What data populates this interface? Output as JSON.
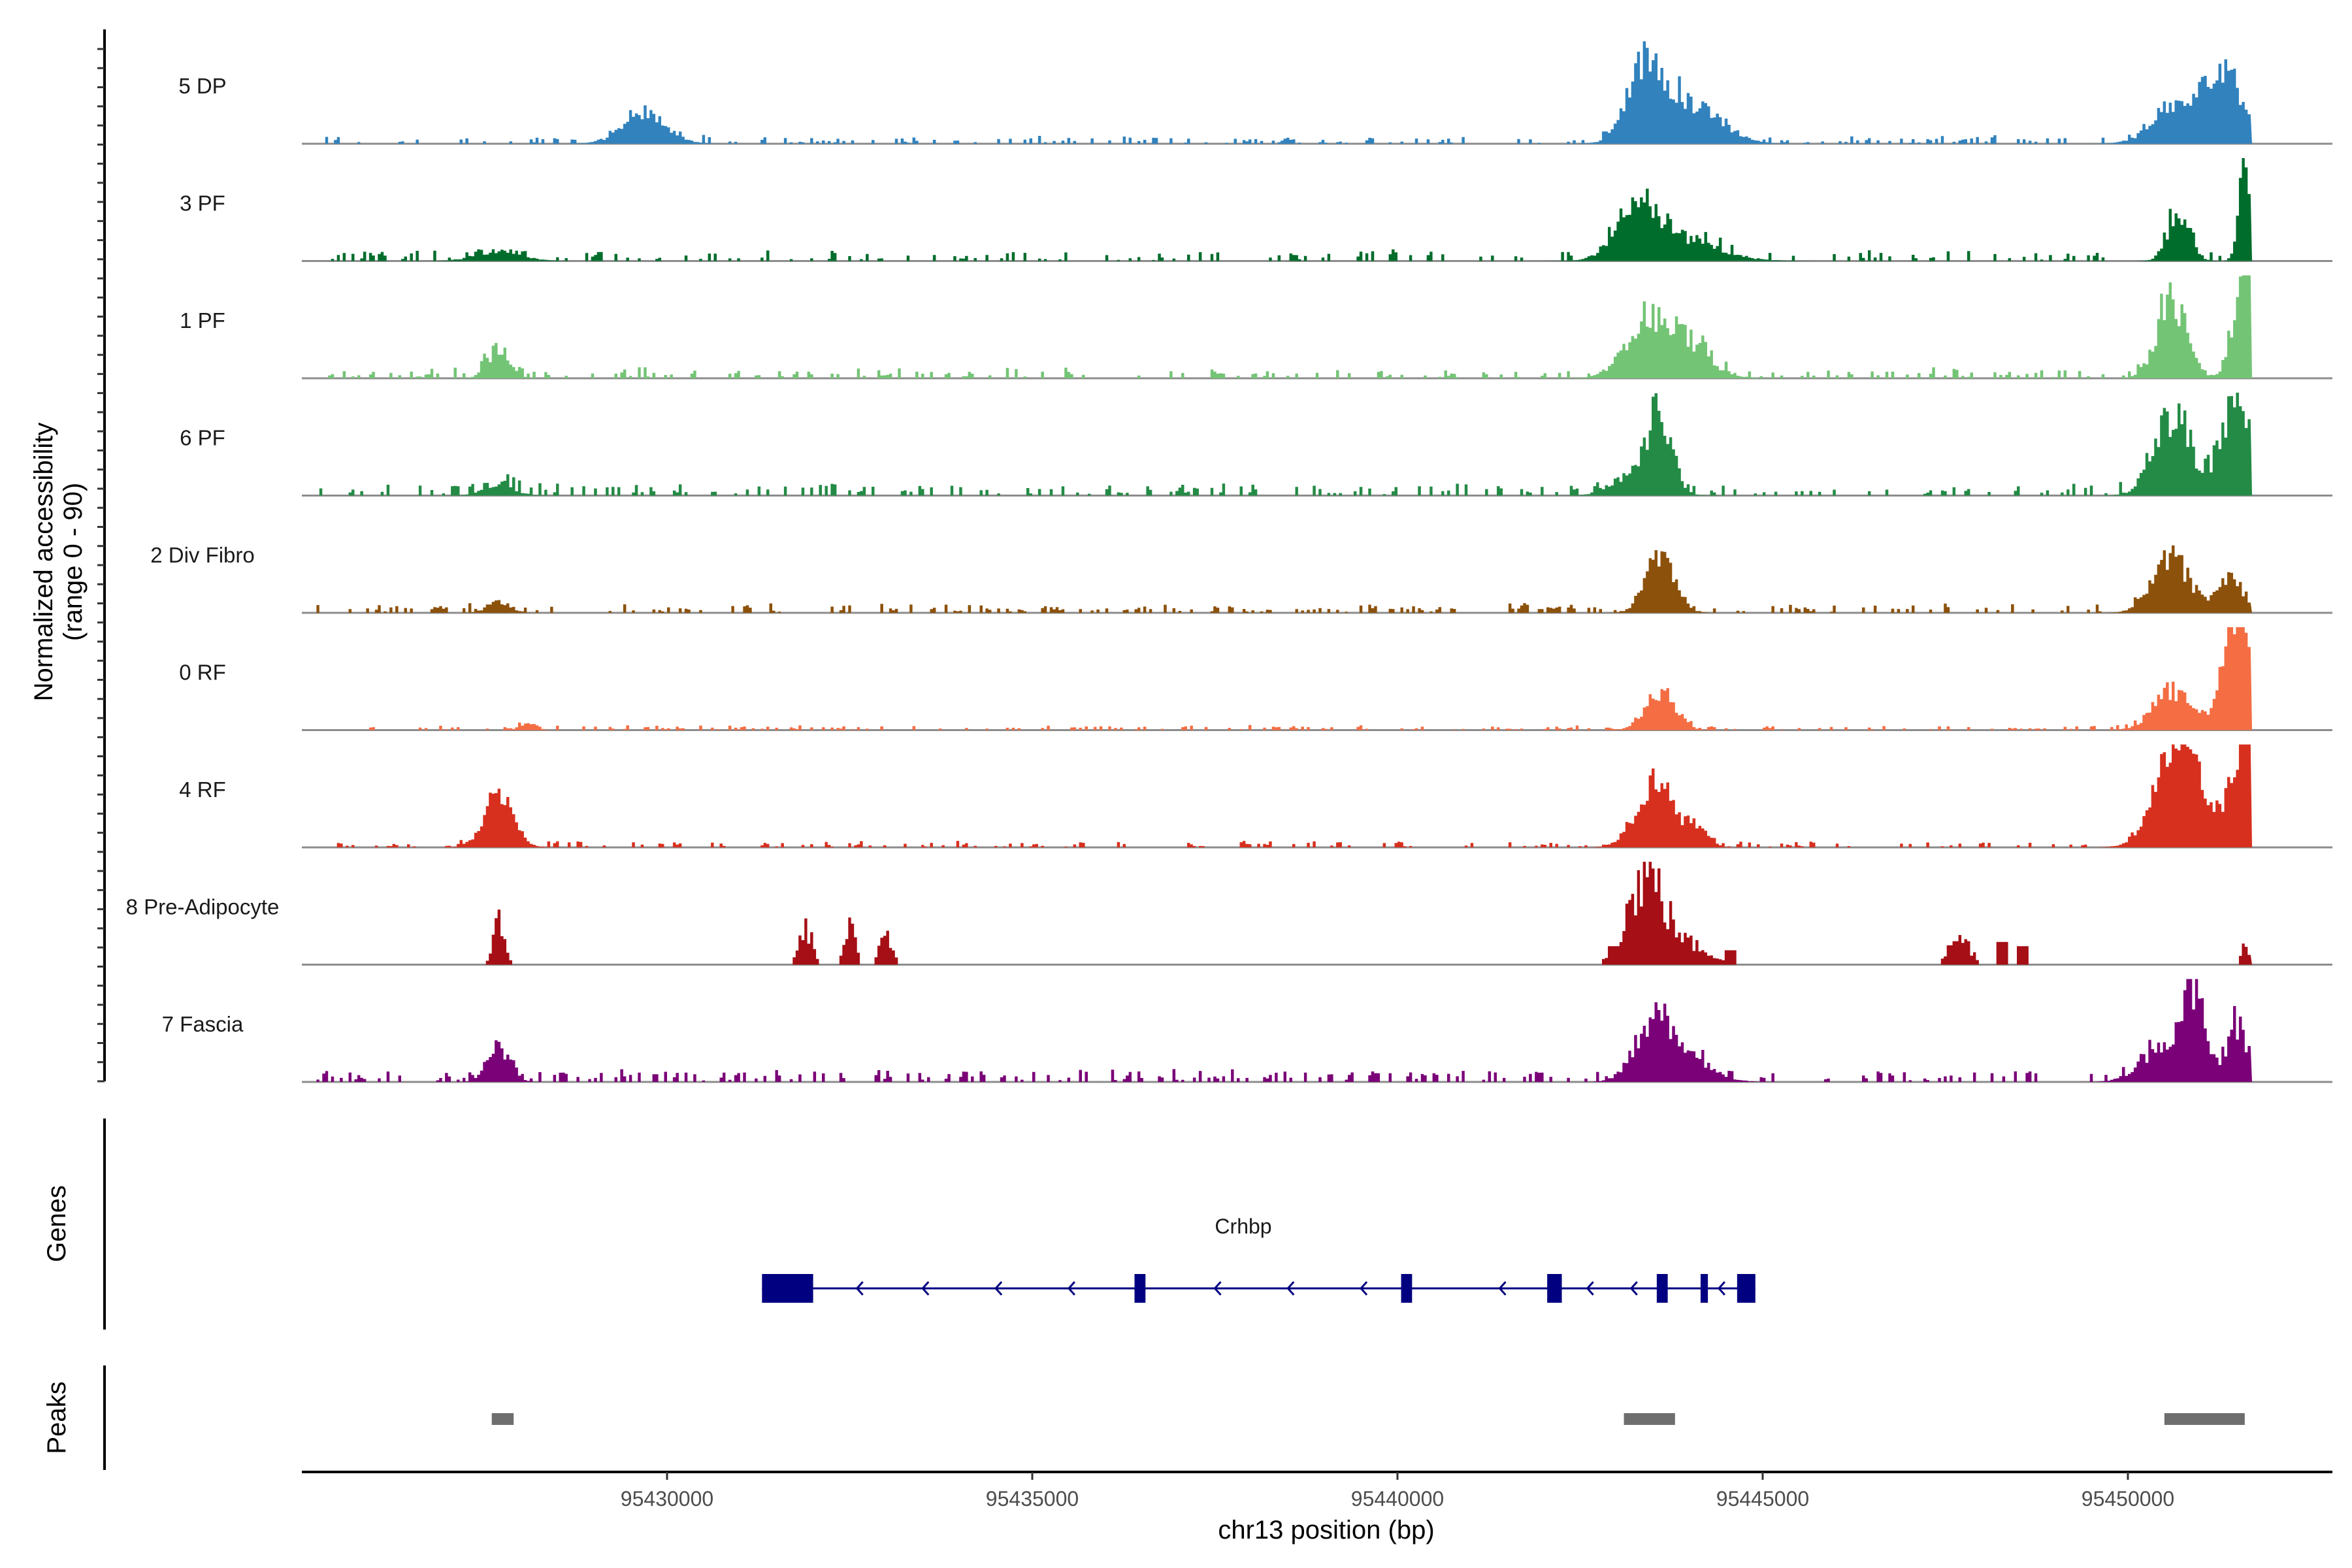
{
  "chart_data": {
    "type": "area",
    "chromosome": "chr13",
    "xlim": [
      95425000,
      95452800
    ],
    "xlabel": "chr13 position (bp)",
    "x_ticks": [
      95430000,
      95435000,
      95440000,
      95445000,
      95450000
    ],
    "x_tick_labels": [
      "95430000",
      "95435000",
      "95440000",
      "95445000",
      "95450000"
    ],
    "ylabel_line1": "Normalized accessibility",
    "ylabel_line2": "(range 0 - 90)",
    "y_range": [
      0,
      90
    ],
    "series": [
      {
        "name": "5 DP",
        "color": "#3182BD",
        "background": 0.05,
        "style": "smooth",
        "peaks": [
          [
            95429700,
            300,
            0.3
          ],
          [
            95443400,
            250,
            0.75
          ],
          [
            95443900,
            350,
            0.35
          ],
          [
            95444400,
            300,
            0.12
          ],
          [
            95450600,
            300,
            0.3
          ],
          [
            95451300,
            300,
            0.7
          ]
        ]
      },
      {
        "name": "3 PF",
        "color": "#006D2C",
        "background": 0.07,
        "style": "smooth",
        "peaks": [
          [
            95427700,
            300,
            0.1
          ],
          [
            95443300,
            300,
            0.45
          ],
          [
            95443900,
            500,
            0.2
          ],
          [
            95450700,
            150,
            0.5
          ],
          [
            95451600,
            80,
            1.0
          ]
        ]
      },
      {
        "name": "1 PF",
        "color": "#74C476",
        "background": 0.07,
        "style": "smooth",
        "peaks": [
          [
            95427700,
            150,
            0.3
          ],
          [
            95443300,
            200,
            0.25
          ],
          [
            95443700,
            400,
            0.55
          ],
          [
            95450600,
            200,
            0.8
          ],
          [
            95451600,
            150,
            1.1
          ]
        ]
      },
      {
        "name": "6 PF",
        "color": "#238B45",
        "background": 0.08,
        "style": "smooth",
        "peaks": [
          [
            95427700,
            200,
            0.12
          ],
          [
            95443300,
            300,
            0.25
          ],
          [
            95443600,
            150,
            0.7
          ],
          [
            95450600,
            250,
            0.8
          ],
          [
            95451500,
            200,
            1.0
          ]
        ]
      },
      {
        "name": "2 Div Fibro",
        "color": "#8C510A",
        "background": 0.06,
        "style": "smooth",
        "peaks": [
          [
            95427700,
            150,
            0.12
          ],
          [
            95443600,
            200,
            0.55
          ],
          [
            95450600,
            250,
            0.55
          ],
          [
            95451400,
            150,
            0.4
          ]
        ]
      },
      {
        "name": "0 RF",
        "color": "#F46D43",
        "background": 0.03,
        "style": "smooth",
        "peaks": [
          [
            95428100,
            100,
            0.08
          ],
          [
            95443600,
            200,
            0.4
          ],
          [
            95450600,
            250,
            0.4
          ],
          [
            95451500,
            200,
            1.15
          ]
        ]
      },
      {
        "name": "4 RF",
        "color": "#D7301F",
        "background": 0.04,
        "style": "smooth",
        "peaks": [
          [
            95427700,
            200,
            0.55
          ],
          [
            95443300,
            200,
            0.25
          ],
          [
            95443600,
            200,
            0.6
          ],
          [
            95444100,
            150,
            0.2
          ],
          [
            95450700,
            300,
            1.1
          ],
          [
            95451600,
            200,
            1.0
          ]
        ]
      },
      {
        "name": "8 Pre-Adipocyte",
        "color": "#A50F15",
        "background": 0.0,
        "style": "blocky",
        "peaks": [
          [
            95427700,
            80,
            0.5
          ],
          [
            95431900,
            80,
            0.45
          ],
          [
            95432500,
            80,
            0.4
          ],
          [
            95433000,
            80,
            0.35
          ],
          [
            95443400,
            250,
            1.0
          ],
          [
            95444000,
            300,
            0.2
          ],
          [
            95447700,
            150,
            0.3
          ],
          [
            95451600,
            40,
            0.3
          ]
        ]
      },
      {
        "name": "7 Fascia",
        "color": "#7A0177",
        "background": 0.08,
        "style": "smooth",
        "peaks": [
          [
            95427700,
            150,
            0.35
          ],
          [
            95443500,
            250,
            0.55
          ],
          [
            95443900,
            350,
            0.25
          ],
          [
            95450500,
            300,
            0.35
          ],
          [
            95450900,
            150,
            0.85
          ],
          [
            95451500,
            150,
            0.55
          ]
        ]
      }
    ],
    "genes": {
      "title": "Genes",
      "gene_name": "Crhbp",
      "color": "#000080",
      "strand": "-",
      "start": 95431300,
      "end": 95444900,
      "exons": [
        [
          95431300,
          95432000
        ],
        [
          95436400,
          95436550
        ],
        [
          95440050,
          95440200
        ],
        [
          95442050,
          95442250
        ],
        [
          95443550,
          95443700
        ],
        [
          95444150,
          95444250
        ],
        [
          95444650,
          95444900
        ]
      ],
      "arrows": [
        95432600,
        95433500,
        95434500,
        95435500,
        95437500,
        95438500,
        95439500,
        95441400,
        95442600,
        95443200,
        95444400
      ]
    },
    "peaks_track": {
      "title": "Peaks",
      "color": "#6E6E6E",
      "regions": [
        [
          95427600,
          95427900
        ],
        [
          95443100,
          95443800
        ],
        [
          95450500,
          95451600
        ]
      ]
    }
  }
}
